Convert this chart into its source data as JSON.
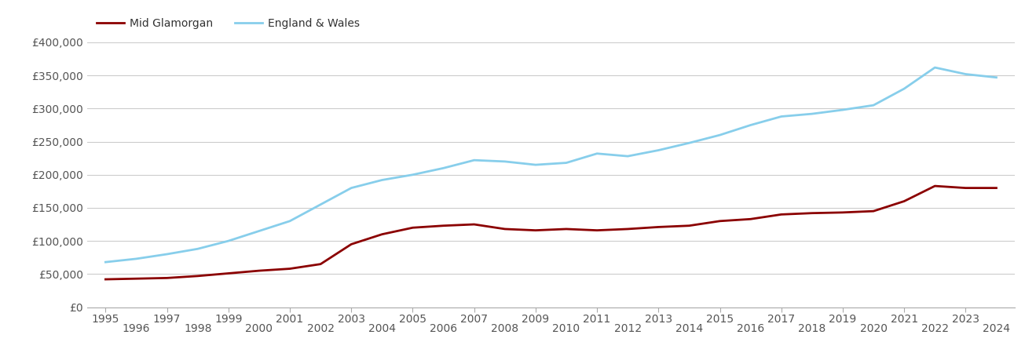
{
  "mid_glamorgan": {
    "years": [
      1995,
      1996,
      1997,
      1998,
      1999,
      2000,
      2001,
      2002,
      2003,
      2004,
      2005,
      2006,
      2007,
      2008,
      2009,
      2010,
      2011,
      2012,
      2013,
      2014,
      2015,
      2016,
      2017,
      2018,
      2019,
      2020,
      2021,
      2022,
      2023,
      2024
    ],
    "values": [
      42000,
      43000,
      44000,
      47000,
      51000,
      55000,
      58000,
      65000,
      95000,
      110000,
      120000,
      123000,
      125000,
      118000,
      116000,
      118000,
      116000,
      118000,
      121000,
      123000,
      130000,
      133000,
      140000,
      142000,
      143000,
      145000,
      160000,
      183000,
      180000,
      180000
    ]
  },
  "england_wales": {
    "years": [
      1995,
      1996,
      1997,
      1998,
      1999,
      2000,
      2001,
      2002,
      2003,
      2004,
      2005,
      2006,
      2007,
      2008,
      2009,
      2010,
      2011,
      2012,
      2013,
      2014,
      2015,
      2016,
      2017,
      2018,
      2019,
      2020,
      2021,
      2022,
      2023,
      2024
    ],
    "values": [
      68000,
      73000,
      80000,
      88000,
      100000,
      115000,
      130000,
      155000,
      180000,
      192000,
      200000,
      210000,
      222000,
      220000,
      215000,
      218000,
      232000,
      228000,
      237000,
      248000,
      260000,
      275000,
      288000,
      292000,
      298000,
      305000,
      330000,
      362000,
      352000,
      347000
    ]
  },
  "mid_glamorgan_color": "#8B0000",
  "england_wales_color": "#87CEEB",
  "mid_glamorgan_label": "Mid Glamorgan",
  "england_wales_label": "England & Wales",
  "ylim": [
    0,
    400000
  ],
  "yticks": [
    0,
    50000,
    100000,
    150000,
    200000,
    250000,
    300000,
    350000,
    400000
  ],
  "ytick_labels": [
    "£0",
    "£50,000",
    "£100,000",
    "£150,000",
    "£200,000",
    "£250,000",
    "£300,000",
    "£350,000",
    "£400,000"
  ],
  "xticks_odd": [
    1995,
    1997,
    1999,
    2001,
    2003,
    2005,
    2007,
    2009,
    2011,
    2013,
    2015,
    2017,
    2019,
    2021,
    2023
  ],
  "xticks_even": [
    1996,
    1998,
    2000,
    2002,
    2004,
    2006,
    2008,
    2010,
    2012,
    2014,
    2016,
    2018,
    2020,
    2022,
    2024
  ],
  "line_width": 2.0,
  "background_color": "#ffffff",
  "grid_color": "#cccccc",
  "axis_fontsize": 10,
  "legend_fontsize": 10
}
